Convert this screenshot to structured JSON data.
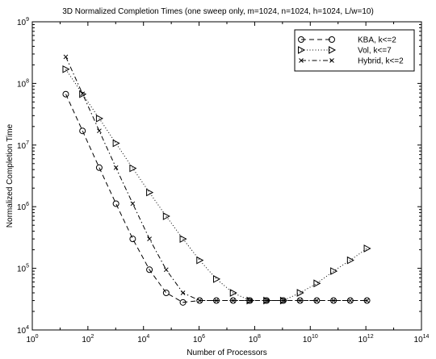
{
  "chart_data": {
    "type": "line",
    "title": "3D Normalized Completion Times (one sweep only, m=1024, n=1024, h=1024, L/w=10)",
    "xlabel": "Number of Processors",
    "ylabel": "Normalized Completion Time",
    "xscale": "log",
    "yscale": "log",
    "xlim": [
      1,
      100000000000000
    ],
    "ylim": [
      10000,
      1000000000
    ],
    "x_ticks": [
      {
        "base": "10",
        "exp": "0"
      },
      {
        "base": "10",
        "exp": "2"
      },
      {
        "base": "10",
        "exp": "4"
      },
      {
        "base": "10",
        "exp": "6"
      },
      {
        "base": "10",
        "exp": "8"
      },
      {
        "base": "10",
        "exp": "10"
      },
      {
        "base": "10",
        "exp": "12"
      },
      {
        "base": "10",
        "exp": "14"
      }
    ],
    "y_ticks": [
      {
        "base": "10",
        "exp": "4"
      },
      {
        "base": "10",
        "exp": "5"
      },
      {
        "base": "10",
        "exp": "6"
      },
      {
        "base": "10",
        "exp": "7"
      },
      {
        "base": "10",
        "exp": "8"
      },
      {
        "base": "10",
        "exp": "9"
      }
    ],
    "grid": false,
    "legend": "top-right",
    "series": [
      {
        "name": "KBA, k<=2",
        "marker": "circle",
        "line_style": "dashed",
        "x": [
          16,
          64,
          256,
          1024,
          4096,
          16384,
          65536,
          262144,
          1048576,
          4194304,
          16777216,
          67108864,
          268435456,
          1073741824,
          4294967296,
          17179869184,
          68719476736,
          274877906944,
          1099511627776
        ],
        "y": [
          67000000,
          17000000,
          4300000,
          1120000,
          300000,
          95000,
          40000,
          28000,
          30000,
          30000,
          30000,
          30000,
          30000,
          30000,
          30000,
          30000,
          30000,
          30000,
          30000
        ]
      },
      {
        "name": "Vol, k<=7",
        "marker": "triangle-right",
        "line_style": "dotted",
        "x": [
          16,
          64,
          256,
          1024,
          4096,
          16384,
          65536,
          262144,
          1048576,
          4194304,
          16777216,
          67108864,
          268435456,
          1073741824,
          4294967296,
          17179869184,
          68719476736,
          274877906944,
          1099511627776
        ],
        "y": [
          170000000,
          67000000,
          27000000,
          10700000,
          4200000,
          1700000,
          700000,
          300000,
          135000,
          67000,
          40000,
          30000,
          30000,
          30000,
          40000,
          57000,
          90000,
          135000,
          210000
        ]
      },
      {
        "name": "Hybrid, k<=2",
        "marker": "x",
        "line_style": "dashdot",
        "x": [
          16,
          64,
          256,
          1024,
          4096,
          16384,
          65536,
          262144,
          1048576,
          4194304,
          16777216,
          67108864,
          268435456,
          1073741824,
          4294967296,
          17179869184,
          68719476736,
          274877906944,
          1099511627776
        ],
        "y": [
          270000000,
          68000000,
          17000000,
          4300000,
          1120000,
          300000,
          95000,
          40000,
          30000,
          30000,
          30000,
          30000,
          30000,
          30000,
          30000,
          30000,
          30000,
          30000,
          30000
        ]
      }
    ]
  }
}
